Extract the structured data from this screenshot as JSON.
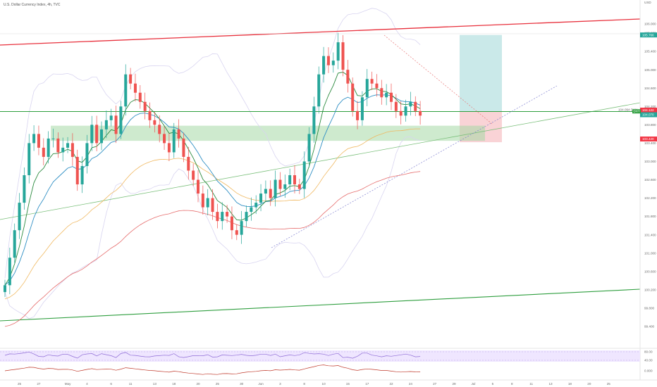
{
  "chart_data": {
    "type": "candlestick",
    "title": "U.S. Dollar Currency Index, 4h, TVC",
    "currency": "USD",
    "y_ticks": [
      "106.000",
      "105.800",
      "105.400",
      "105.000",
      "104.600",
      "104.200",
      "103.800",
      "103.400",
      "103.000",
      "102.600",
      "102.200",
      "101.800",
      "101.400",
      "101.000",
      "100.600",
      "100.200",
      "99.800",
      "99.400"
    ],
    "y_tick_values": [
      106.0,
      105.8,
      105.4,
      105.0,
      104.6,
      104.2,
      103.8,
      103.4,
      103.0,
      102.6,
      102.2,
      101.8,
      101.4,
      101.0,
      100.6,
      100.2,
      99.8,
      99.4
    ],
    "ylim": [
      99.0,
      106.4
    ],
    "x_ticks": [
      {
        "label": "25",
        "idx": 3
      },
      {
        "label": "27",
        "idx": 7
      },
      {
        "label": "May",
        "idx": 13
      },
      {
        "label": "4",
        "idx": 17
      },
      {
        "label": "6",
        "idx": 22
      },
      {
        "label": "11",
        "idx": 26
      },
      {
        "label": "13",
        "idx": 31
      },
      {
        "label": "18",
        "idx": 35
      },
      {
        "label": "20",
        "idx": 40
      },
      {
        "label": "25",
        "idx": 44
      },
      {
        "label": "30",
        "idx": 49
      },
      {
        "label": "Jun",
        "idx": 53
      },
      {
        "label": "3",
        "idx": 57
      },
      {
        "label": "8",
        "idx": 62
      },
      {
        "label": "10",
        "idx": 66
      },
      {
        "label": "15",
        "idx": 71
      },
      {
        "label": "17",
        "idx": 75
      },
      {
        "label": "22",
        "idx": 80
      },
      {
        "label": "24",
        "idx": 84
      },
      {
        "label": "27",
        "idx": 89
      },
      {
        "label": "29",
        "idx": 93
      },
      {
        "label": "Jul",
        "idx": 97
      },
      {
        "label": "5",
        "idx": 101
      },
      {
        "label": "8",
        "idx": 105
      },
      {
        "label": "11",
        "idx": 109
      },
      {
        "label": "13",
        "idx": 113
      },
      {
        "label": "18",
        "idx": 117
      },
      {
        "label": "20",
        "idx": 121
      },
      {
        "label": "25",
        "idx": 125
      }
    ],
    "close_series": [
      100.3,
      100.9,
      101.5,
      102.1,
      102.7,
      103.4,
      103.6,
      103.3,
      103.1,
      103.5,
      103.5,
      103.2,
      103.3,
      103.4,
      103.1,
      102.5,
      102.9,
      103.4,
      103.8,
      103.4,
      103.7,
      103.9,
      104.0,
      103.6,
      104.2,
      104.9,
      104.7,
      104.5,
      104.3,
      104.1,
      103.9,
      103.8,
      103.6,
      103.4,
      103.2,
      103.7,
      103.5,
      103.1,
      102.8,
      102.6,
      102.3,
      102.0,
      102.2,
      101.9,
      101.7,
      101.9,
      101.8,
      101.5,
      101.4,
      101.7,
      101.9,
      102.0,
      102.1,
      102.3,
      102.4,
      102.2,
      102.6,
      102.4,
      102.5,
      102.7,
      102.5,
      102.4,
      103.0,
      103.6,
      104.2,
      104.9,
      105.3,
      105.1,
      105.2,
      105.6,
      105.0,
      104.7,
      104.1,
      103.9,
      104.4,
      104.8,
      104.7,
      104.6,
      104.4,
      104.5,
      104.3,
      104.1,
      104.0,
      104.2,
      104.3,
      104.1,
      104.0
    ],
    "indicators": {
      "ema_fast": "dark green",
      "ema_mid": "blue",
      "ema_slow": "orange",
      "ema_long": "red",
      "bollinger_bands": "light lavender"
    },
    "levels": [
      {
        "name": "green horizontal line",
        "value": 104.09
      },
      {
        "name": "green support zone",
        "from": 103.45,
        "to": 103.78
      }
    ],
    "position_tool": {
      "entry": 104.09,
      "target": 105.76,
      "stop": 103.42,
      "labels": [
        {
          "price": 105.76,
          "text": "105.766",
          "color": "#26a69a"
        },
        {
          "price": 104.12,
          "text": "104.122",
          "color": "#f23645"
        },
        {
          "price": 104.02,
          "text": "104.070",
          "color": "#26a69a"
        },
        {
          "price": 103.49,
          "text": "103.420",
          "color": "#f23645"
        }
      ],
      "green_tag": "DXY",
      "caption": "104.094 DXY"
    },
    "oscillators": {
      "rsi_levels": [
        "80.00",
        "40.00"
      ],
      "lower_level": "0.000"
    },
    "colors": {
      "up": "#26a69a",
      "down": "#ef5350",
      "channel": "#e8303c",
      "lower_channel": "#2e9e3e",
      "target_zone": "#b3e0e0",
      "stop_zone": "#f8c8cc",
      "support_zone": "#a6d9a6"
    }
  }
}
